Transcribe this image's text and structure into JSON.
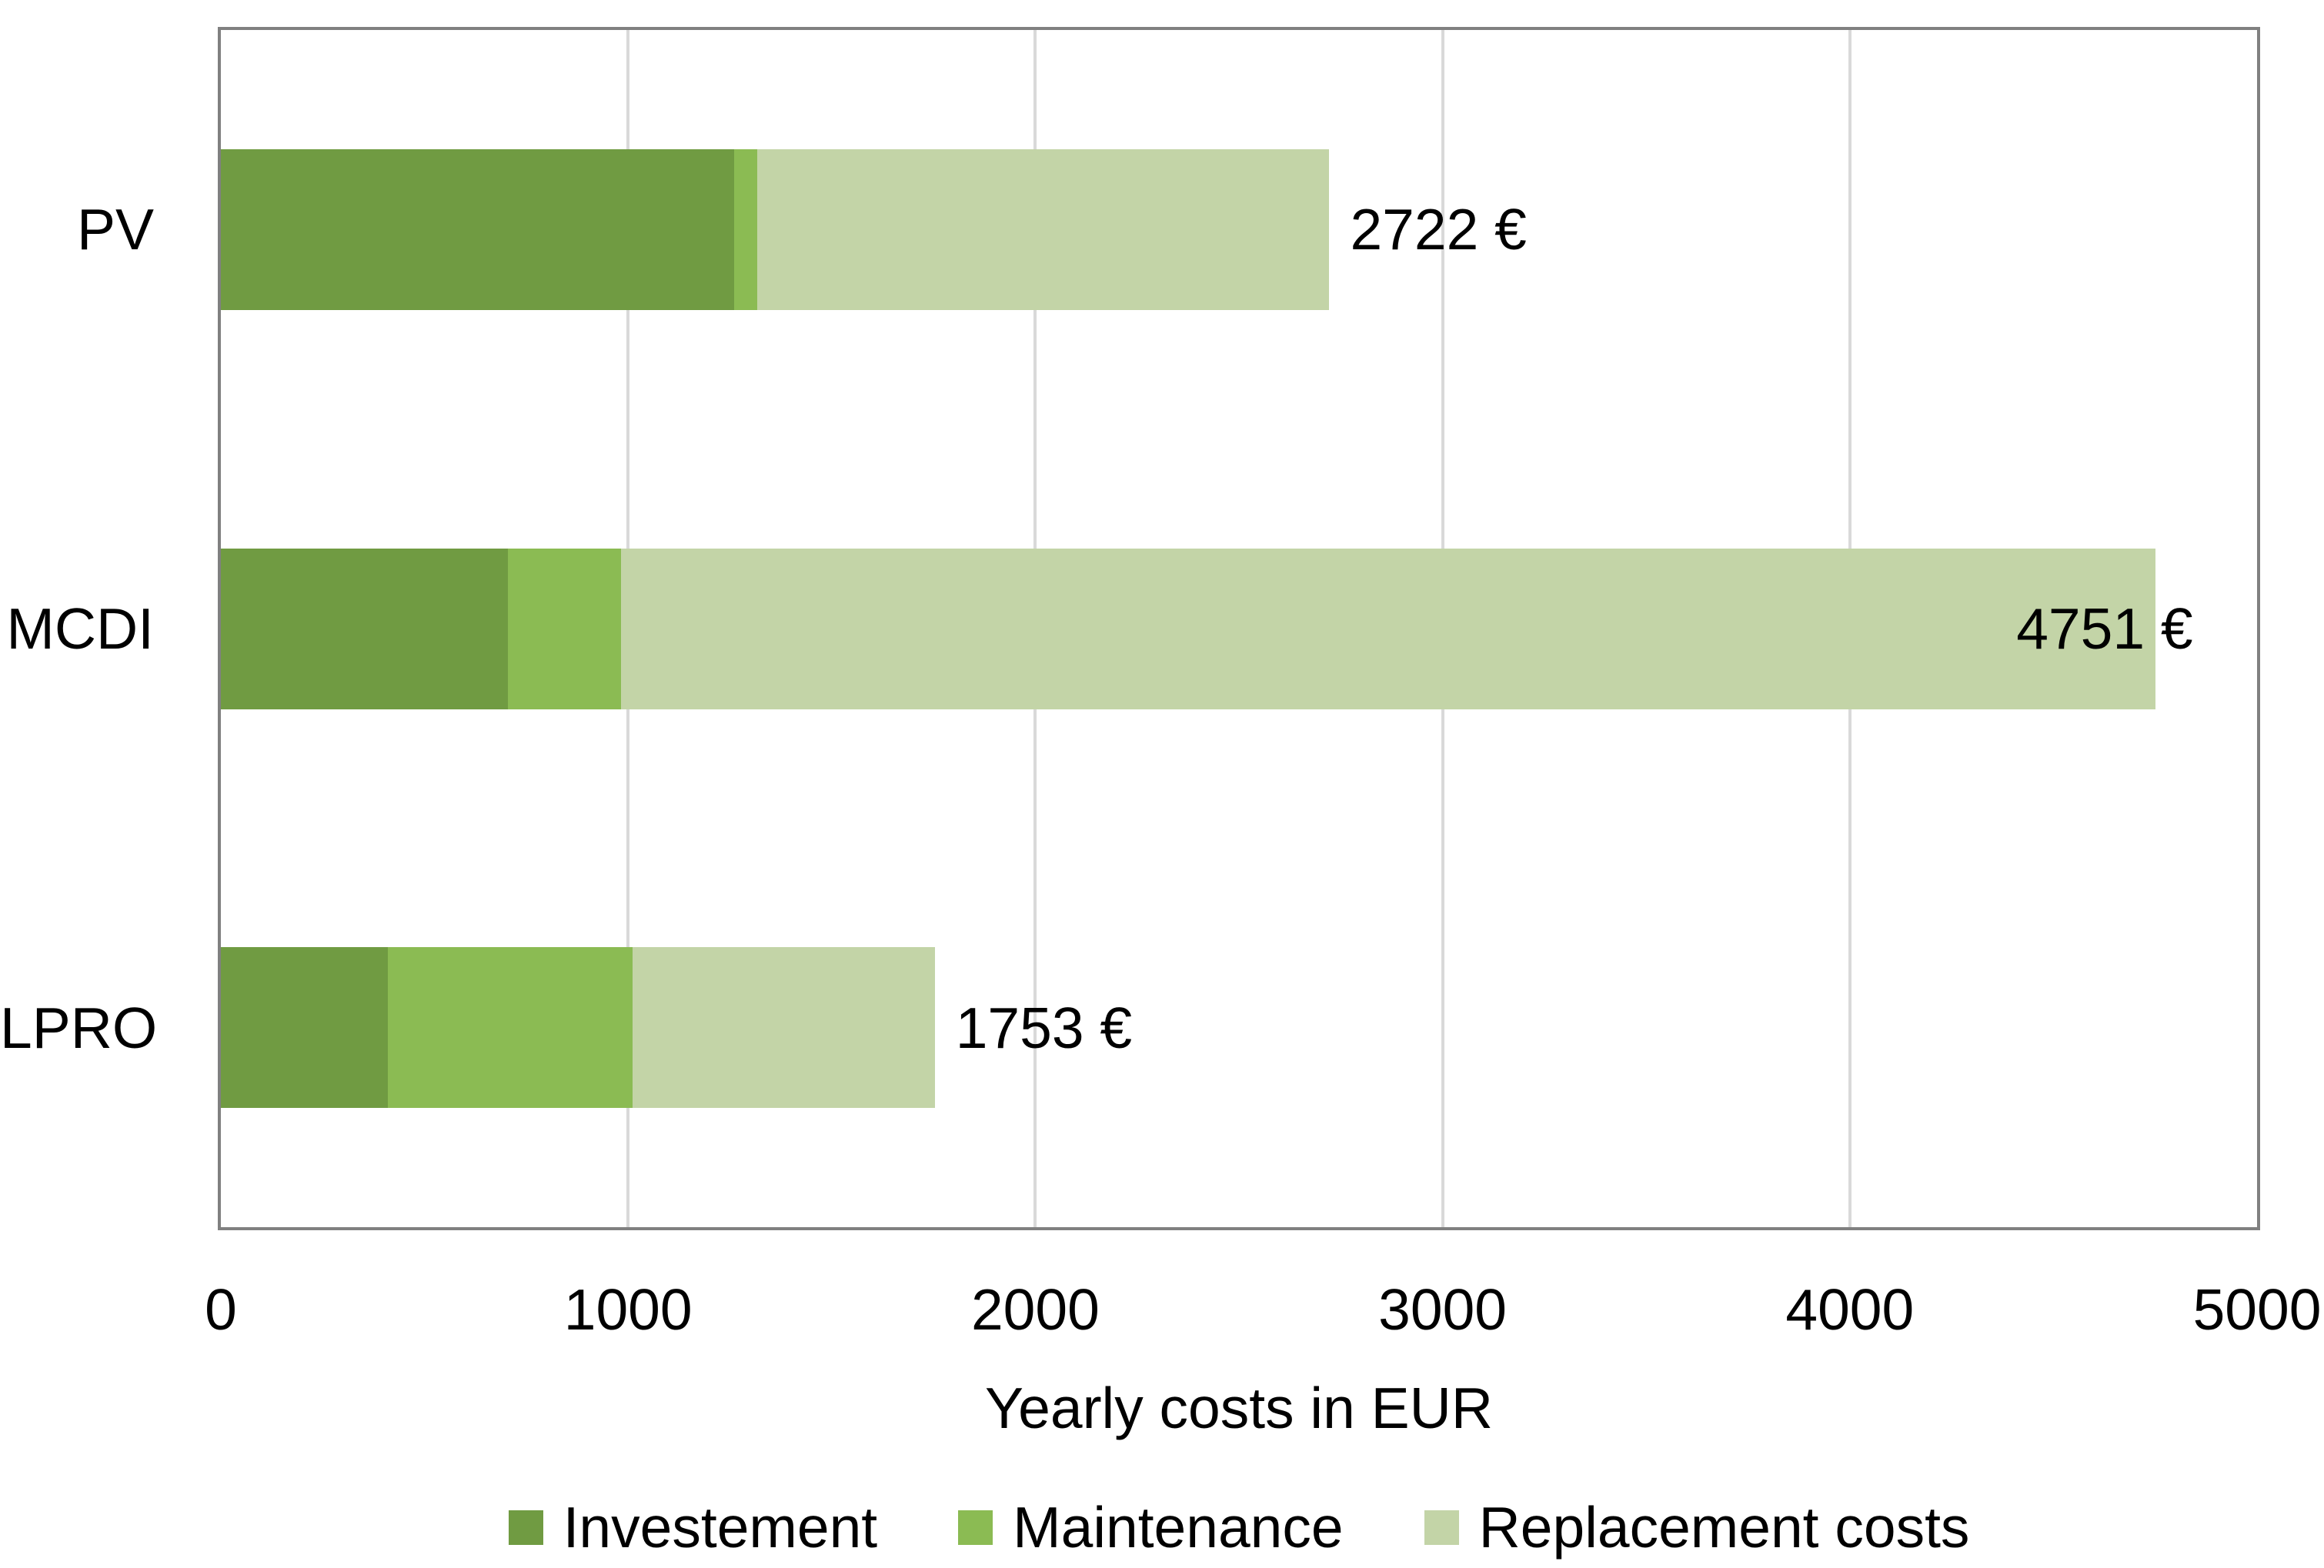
{
  "chart_data": {
    "type": "bar",
    "orientation": "horizontal",
    "stacked": true,
    "title": "",
    "xlabel": "Yearly costs in EUR",
    "ylabel": "",
    "xlim": [
      0,
      5000
    ],
    "xticks": [
      0,
      1000,
      2000,
      3000,
      4000,
      5000
    ],
    "grid": true,
    "legend_position": "bottom",
    "categories": [
      "PV",
      "MCDI",
      "LPRO"
    ],
    "series": [
      {
        "name": "Investement",
        "color": "#709B42",
        "values": [
          1260,
          705,
          410
        ]
      },
      {
        "name": "Maintenance",
        "color": "#8BBB53",
        "values": [
          58,
          278,
          601
        ]
      },
      {
        "name": "Replacement costs",
        "color": "#C3D4A7",
        "values": [
          1404,
          3768,
          742
        ]
      }
    ],
    "totals": [
      2722,
      4751,
      1753
    ],
    "total_labels": [
      "2722 €",
      "4751 €",
      "1753 €"
    ],
    "colors": {
      "plot_border": "#808080",
      "gridline": "#D9D9D9",
      "text": "#000000",
      "background": "#FFFFFF"
    }
  }
}
